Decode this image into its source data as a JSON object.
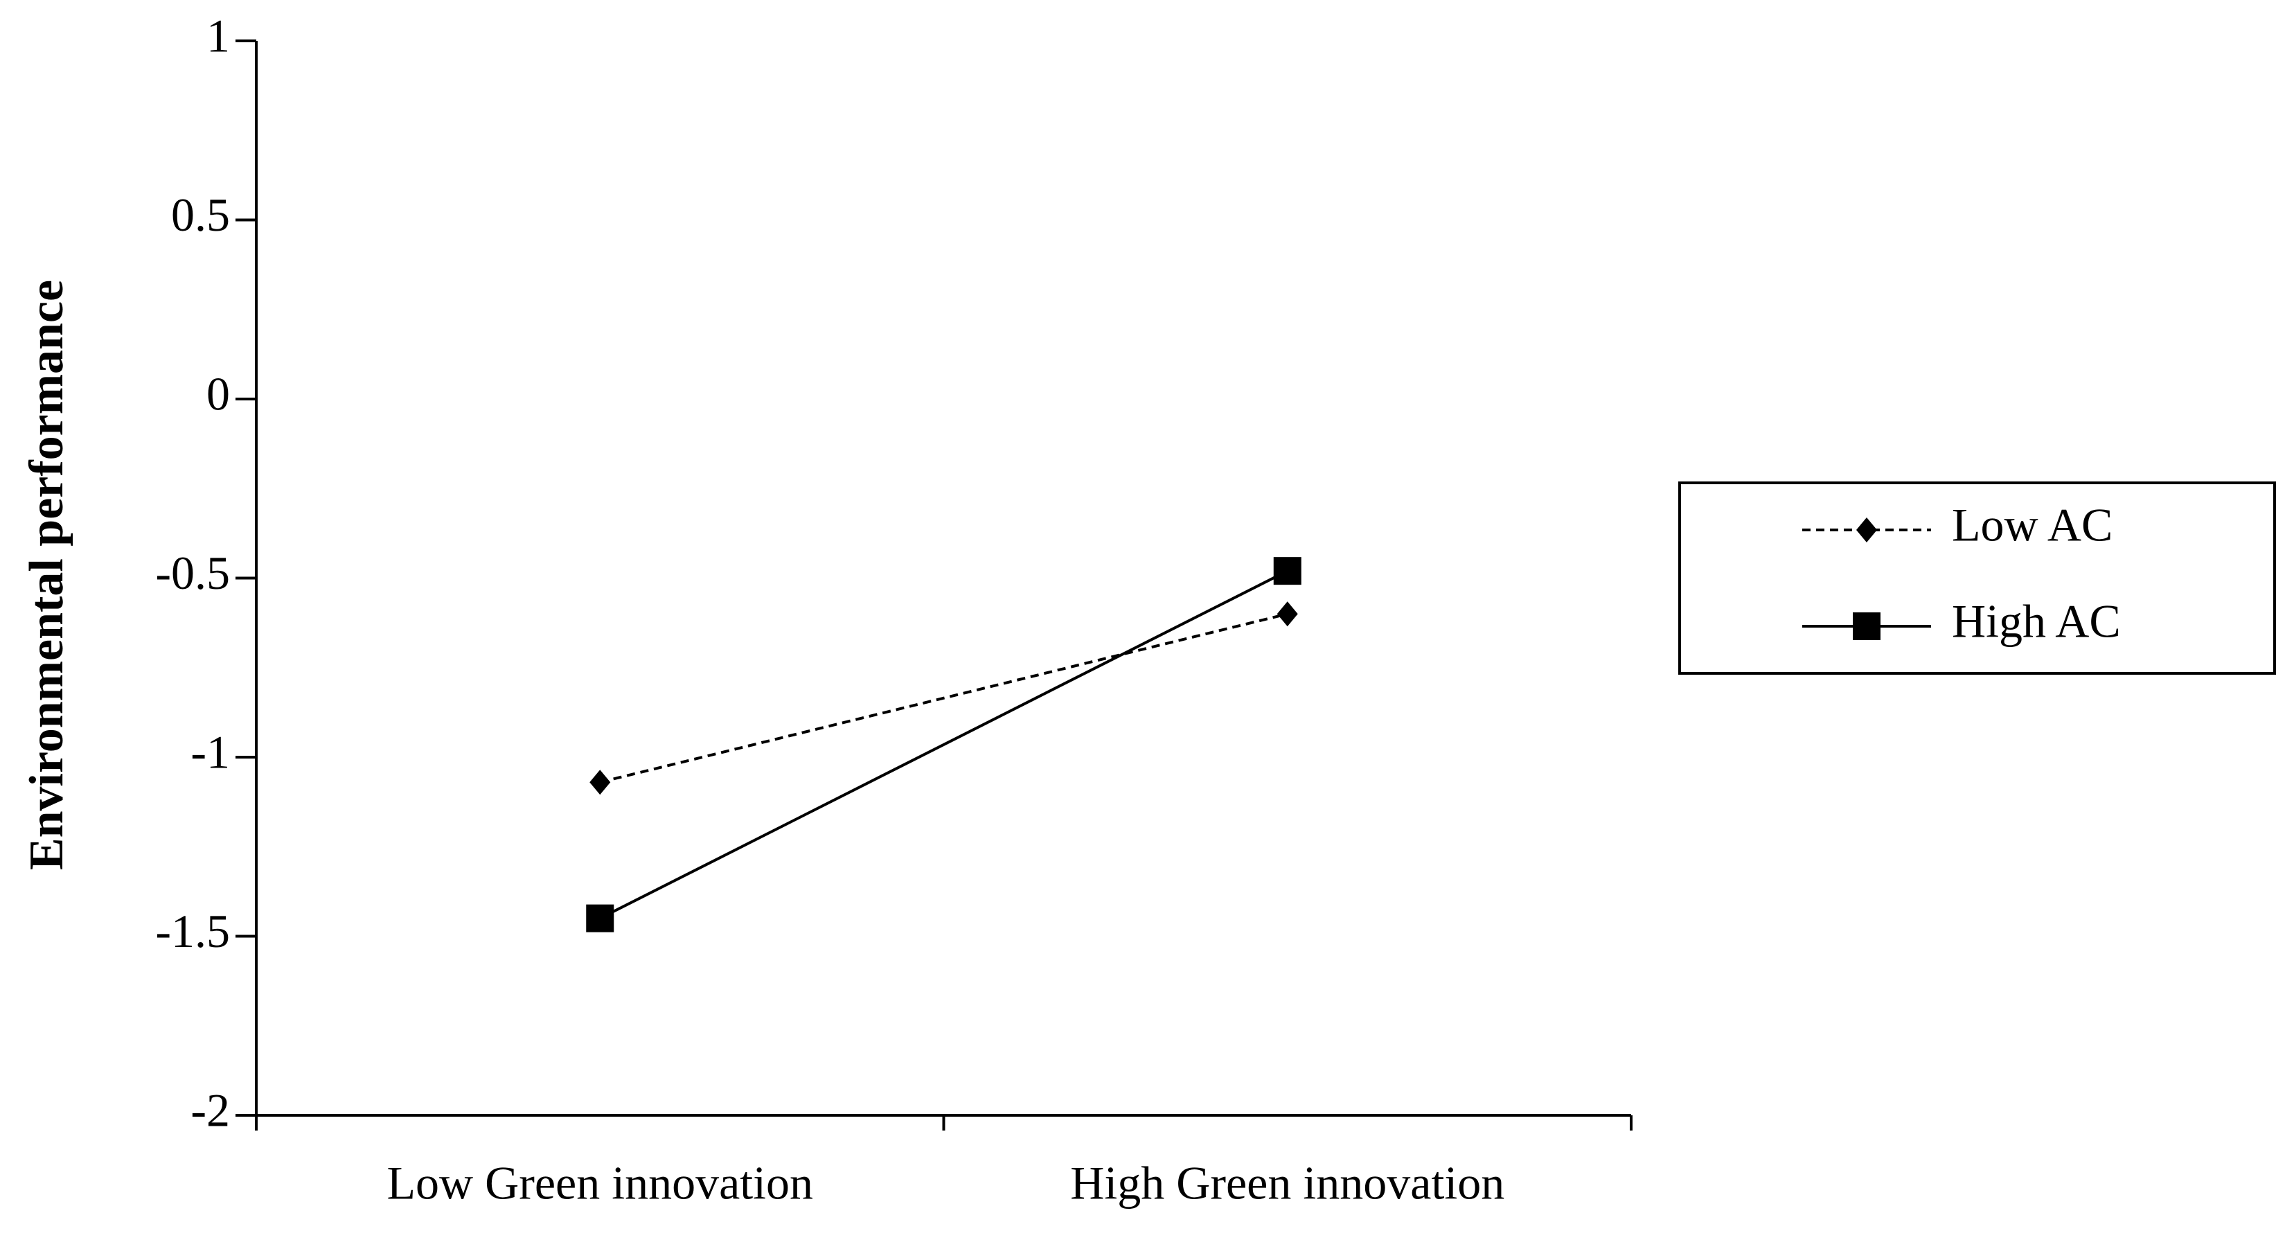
{
  "chart_data": {
    "type": "line",
    "y_label": "Environmental performance",
    "categories": [
      "Low Green innovation",
      "High Green innovation"
    ],
    "series": [
      {
        "name": "Low AC",
        "color": "#000000",
        "dash": "dashed",
        "marker": "diamond",
        "values": [
          -1.07,
          -0.6
        ]
      },
      {
        "name": "High AC",
        "color": "#000000",
        "dash": "solid",
        "marker": "square",
        "values": [
          -1.45,
          -0.48
        ]
      }
    ],
    "ylim": [
      -2,
      1
    ],
    "yticks": [
      -2,
      -1.5,
      -1,
      -0.5,
      0,
      0.5,
      1
    ],
    "grid": false,
    "legend": "right"
  }
}
